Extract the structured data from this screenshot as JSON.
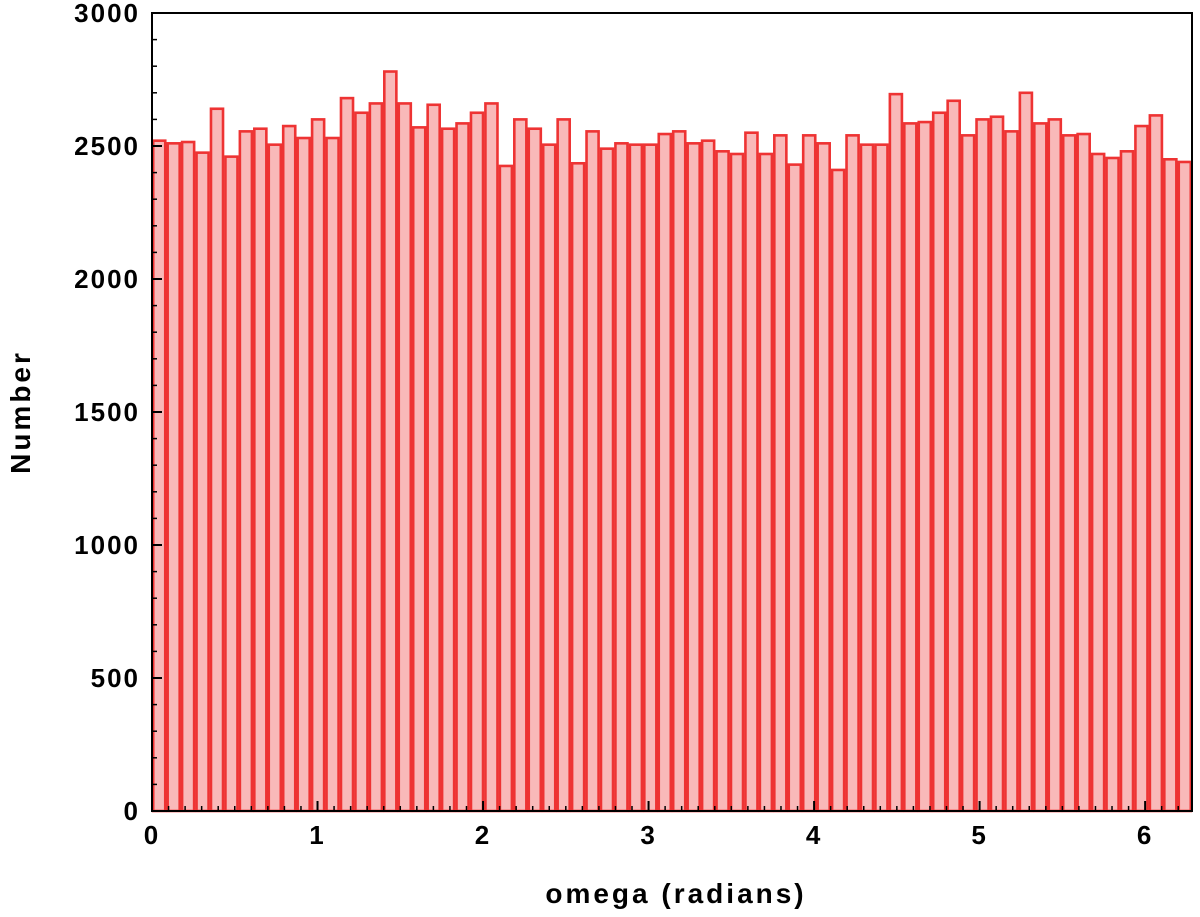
{
  "chart_data": {
    "type": "bar",
    "title": "",
    "xlabel": "omega (radians)",
    "ylabel": "Number",
    "xlim": [
      0,
      6.2832
    ],
    "ylim": [
      0,
      3000
    ],
    "xticks": [
      "0",
      "1",
      "2",
      "3",
      "4",
      "5",
      "6"
    ],
    "yticks": [
      "0",
      "500",
      "1000",
      "1500",
      "2000",
      "2500",
      "3000"
    ],
    "grid": false,
    "bar_fill": "#f9b9b9",
    "bar_edge": "#ee3333",
    "series": [
      {
        "values": [
          2520,
          2510,
          2515,
          2475,
          2640,
          2460,
          2555,
          2565,
          2505,
          2575,
          2530,
          2600,
          2530,
          2680,
          2625,
          2660,
          2780,
          2660,
          2570,
          2655,
          2565,
          2585,
          2625,
          2660,
          2425,
          2600,
          2565,
          2505,
          2600,
          2435,
          2555,
          2490,
          2510,
          2505,
          2505,
          2545,
          2555,
          2510,
          2520,
          2480,
          2470,
          2550,
          2470,
          2540,
          2430,
          2540,
          2510,
          2410,
          2540,
          2505,
          2505,
          2695,
          2585,
          2590,
          2625,
          2670,
          2540,
          2600,
          2610,
          2555,
          2700,
          2585,
          2600,
          2540,
          2545,
          2470,
          2455,
          2480,
          2575,
          2615,
          2450,
          2440
        ]
      }
    ]
  }
}
